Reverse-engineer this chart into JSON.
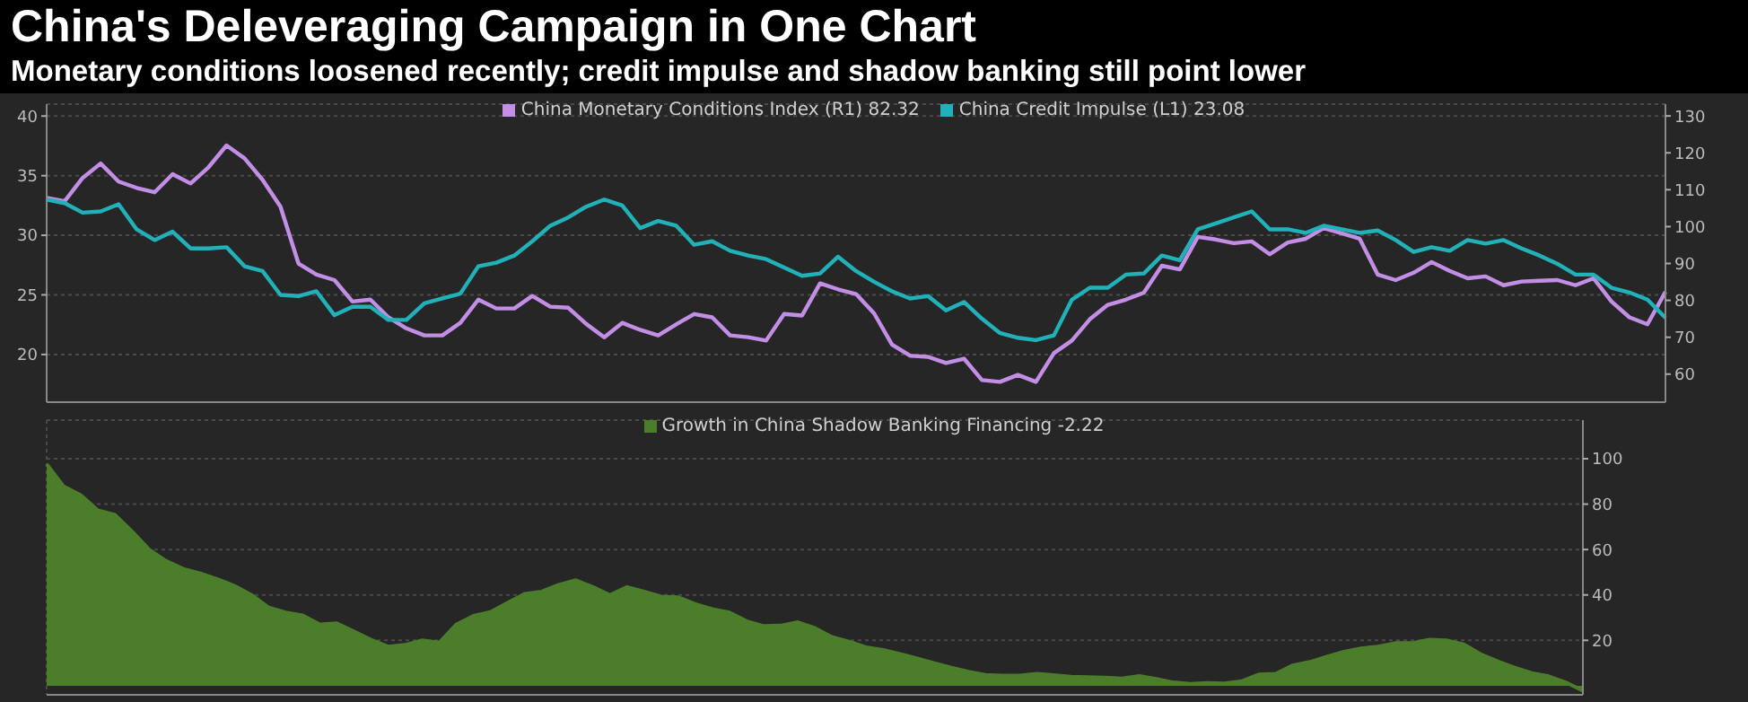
{
  "chart_data": [
    {
      "type": "line",
      "title": "China's Deleveraging Campaign in One Chart",
      "subtitle": "Monetary conditions loosened recently; credit impulse and shadow banking still point lower",
      "categories": [
        null,
        null,
        null,
        null,
        null,
        null,
        null,
        null,
        null,
        null,
        null,
        null,
        null,
        null,
        null,
        null,
        null,
        null,
        null,
        null,
        null,
        null,
        null,
        null,
        null,
        null,
        null,
        null,
        null,
        null,
        null,
        null,
        null,
        null,
        null,
        null,
        null,
        null,
        null,
        null,
        null,
        null,
        null,
        null,
        null,
        null,
        null,
        null,
        null,
        null,
        null,
        null,
        null,
        null,
        null,
        null,
        null,
        null,
        null,
        null,
        null,
        null,
        null,
        null,
        null,
        null,
        null,
        null,
        null,
        null,
        null,
        null,
        null,
        null,
        null,
        null,
        null,
        null,
        null,
        null,
        null,
        null,
        null,
        null,
        null,
        null,
        null,
        null,
        null,
        null,
        null
      ],
      "series": [
        {
          "name": "China Monetary Conditions Index (R1) 82.32",
          "color": "#c38ee6",
          "axis": "y2",
          "values": [
            107.8,
            106.9,
            113.2,
            117.1,
            112.2,
            110.5,
            109.3,
            114.2,
            111.7,
            116.1,
            122.0,
            118.5,
            112.7,
            105.4,
            90.0,
            87.0,
            85.5,
            79.7,
            80.2,
            75.4,
            72.4,
            70.5,
            70.5,
            73.9,
            80.2,
            77.8,
            77.8,
            81.2,
            78.3,
            78.0,
            73.6,
            70.0,
            73.9,
            72.0,
            70.5,
            73.5,
            76.3,
            75.4,
            70.5,
            70.0,
            69.1,
            76.3,
            75.9,
            84.6,
            83.0,
            81.7,
            76.5,
            68.0,
            65.0,
            64.7,
            63.0,
            64.2,
            58.4,
            57.9,
            59.8,
            57.9,
            65.7,
            69.1,
            74.9,
            78.8,
            80.2,
            82.1,
            89.4,
            88.4,
            97.2,
            96.5,
            95.5,
            96.0,
            92.5,
            95.7,
            96.7,
            99.6,
            98.2,
            96.7,
            87.0,
            85.5,
            87.5,
            90.4,
            88.0,
            86.0,
            86.5,
            84.1,
            85.1,
            85.3,
            85.5,
            84.1,
            86.0,
            79.7,
            75.4,
            73.5,
            82.32
          ]
        },
        {
          "name": "China Credit Impulse (L1) 23.08",
          "color": "#20b2b8",
          "values": [
            33.0,
            32.7,
            31.9,
            32.0,
            32.6,
            30.5,
            29.6,
            30.3,
            28.9,
            28.9,
            29.0,
            27.4,
            27.0,
            25.0,
            24.9,
            25.3,
            23.3,
            24.0,
            24.0,
            22.9,
            22.9,
            24.3,
            24.7,
            25.1,
            27.4,
            27.7,
            28.3,
            29.5,
            30.8,
            31.5,
            32.4,
            33.0,
            32.5,
            30.6,
            31.2,
            30.8,
            29.2,
            29.5,
            28.7,
            28.3,
            28.0,
            27.3,
            26.6,
            26.8,
            28.2,
            27.0,
            26.1,
            25.3,
            24.7,
            24.9,
            23.7,
            24.4,
            23.0,
            21.8,
            21.4,
            21.2,
            21.6,
            24.6,
            25.6,
            25.6,
            26.7,
            26.8,
            28.3,
            27.9,
            30.5,
            31.0,
            31.5,
            32.0,
            30.5,
            30.5,
            30.2,
            30.8,
            30.5,
            30.2,
            30.4,
            29.6,
            28.6,
            29.0,
            28.7,
            29.6,
            29.3,
            29.6,
            28.9,
            28.3,
            27.6,
            26.7,
            26.7,
            25.6,
            25.2,
            24.6,
            23.08
          ]
        }
      ],
      "ylim": [
        16,
        41
      ],
      "yticks": [
        20,
        25,
        30,
        35,
        40
      ],
      "y2lim": [
        52.4,
        133.2
      ],
      "y2ticks": [
        60,
        70,
        80,
        90,
        100,
        110,
        120,
        130
      ],
      "grid": true,
      "legend": "top"
    },
    {
      "type": "area",
      "categories": [
        null,
        null,
        null,
        null,
        null,
        null,
        null,
        null,
        null,
        null,
        null,
        null,
        null,
        null,
        null,
        null,
        null,
        null,
        null,
        null,
        null,
        null,
        null,
        null,
        null,
        null,
        null,
        null,
        null,
        null,
        null,
        null,
        null,
        null,
        null,
        null,
        null,
        null,
        null,
        null,
        null,
        null,
        null,
        null,
        null,
        null,
        null,
        null,
        null,
        null,
        null,
        null,
        null,
        null,
        null,
        null,
        null,
        null,
        null,
        null,
        null,
        null,
        null,
        null,
        null,
        null,
        null,
        null,
        null,
        null,
        null,
        null,
        null,
        null,
        null,
        null,
        null,
        null,
        null,
        null,
        null,
        null,
        null,
        null,
        null,
        null,
        null,
        null,
        null,
        null,
        null
      ],
      "series": [
        {
          "name": "Growth in China Shadow Banking Financing -2.22",
          "color": "#4b7d2b",
          "values": [
            97.6,
            87.8,
            84.0,
            77.3,
            75.3,
            68.0,
            60.0,
            55.0,
            51.5,
            49.5,
            47.0,
            44.0,
            40.0,
            34.5,
            32.3,
            31.0,
            27.0,
            27.5,
            24.0,
            20.3,
            17.3,
            18.0,
            20.0,
            19.0,
            27.0,
            30.8,
            32.5,
            36.5,
            40.5,
            41.5,
            44.5,
            46.5,
            43.5,
            40.0,
            43.5,
            41.5,
            39.3,
            39.0,
            36.0,
            33.8,
            32.3,
            28.5,
            26.3,
            26.5,
            28.0,
            25.5,
            21.5,
            19.5,
            17.0,
            15.8,
            14.0,
            12.0,
            10.0,
            8.0,
            6.2,
            4.8,
            4.5,
            4.5,
            5.3,
            4.7,
            4.0,
            3.8,
            3.6,
            3.2,
            4.3,
            3.0,
            1.5,
            0.8,
            1.2,
            1.0,
            2.0,
            5.0,
            5.3,
            9.0,
            10.5,
            12.8,
            15.0,
            16.5,
            17.3,
            18.8,
            18.8,
            20.3,
            20.0,
            18.3,
            14.0,
            10.8,
            8.0,
            5.6,
            4.2,
            1.5,
            -2.22
          ]
        }
      ],
      "ylim": [
        -4,
        117
      ],
      "yticks": [
        20,
        40,
        60,
        80,
        100
      ],
      "grid": true,
      "legend": "top"
    }
  ]
}
